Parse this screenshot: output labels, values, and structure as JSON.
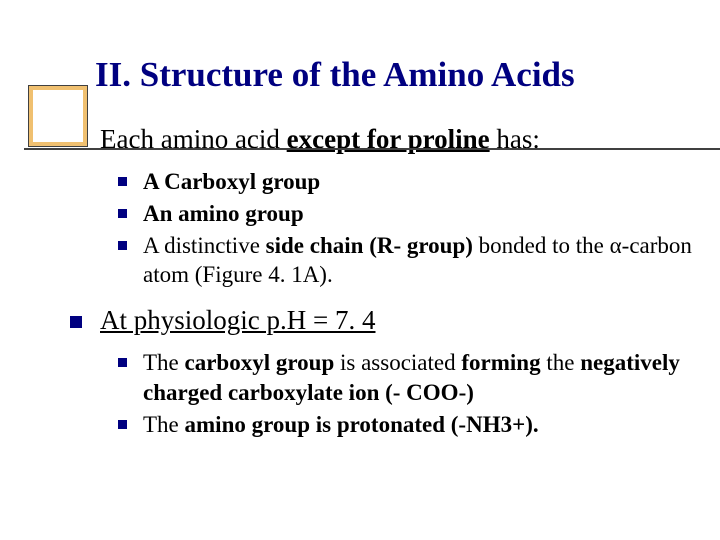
{
  "colors": {
    "background": "#ffffff",
    "title_color": "#000080",
    "bullet_color": "#000080",
    "text_color": "#000000",
    "gold_box": "#f0c070",
    "line_color": "#404040"
  },
  "title": "II. Structure of the Amino Acids",
  "section1": {
    "lead_plain1": "Each amino acid ",
    "lead_bold_ul": "except for proline",
    "lead_plain2": " has:",
    "items": {
      "i0": "A Carboxyl group",
      "i1": "An amino group",
      "i2_a": "A distinctive ",
      "i2_b": "side chain (R- group)",
      "i2_c": " bonded to the α-carbon atom (Figure 4. 1A)."
    }
  },
  "section2": {
    "lead": "At physiologic p.H = 7. 4",
    "items": {
      "i0_a": "The ",
      "i0_b": "carboxyl group",
      "i0_c": " is associated ",
      "i0_d": "forming",
      "i0_e": " the ",
      "i0_f": "negatively charged carboxylate ion (- COO-)",
      "i1_a": "The ",
      "i1_b": "amino group is protonated (-NH3+)."
    }
  },
  "typography": {
    "title_fontsize": 35,
    "l1_fontsize": 27,
    "l2_fontsize": 23,
    "font_family": "Times New Roman"
  }
}
